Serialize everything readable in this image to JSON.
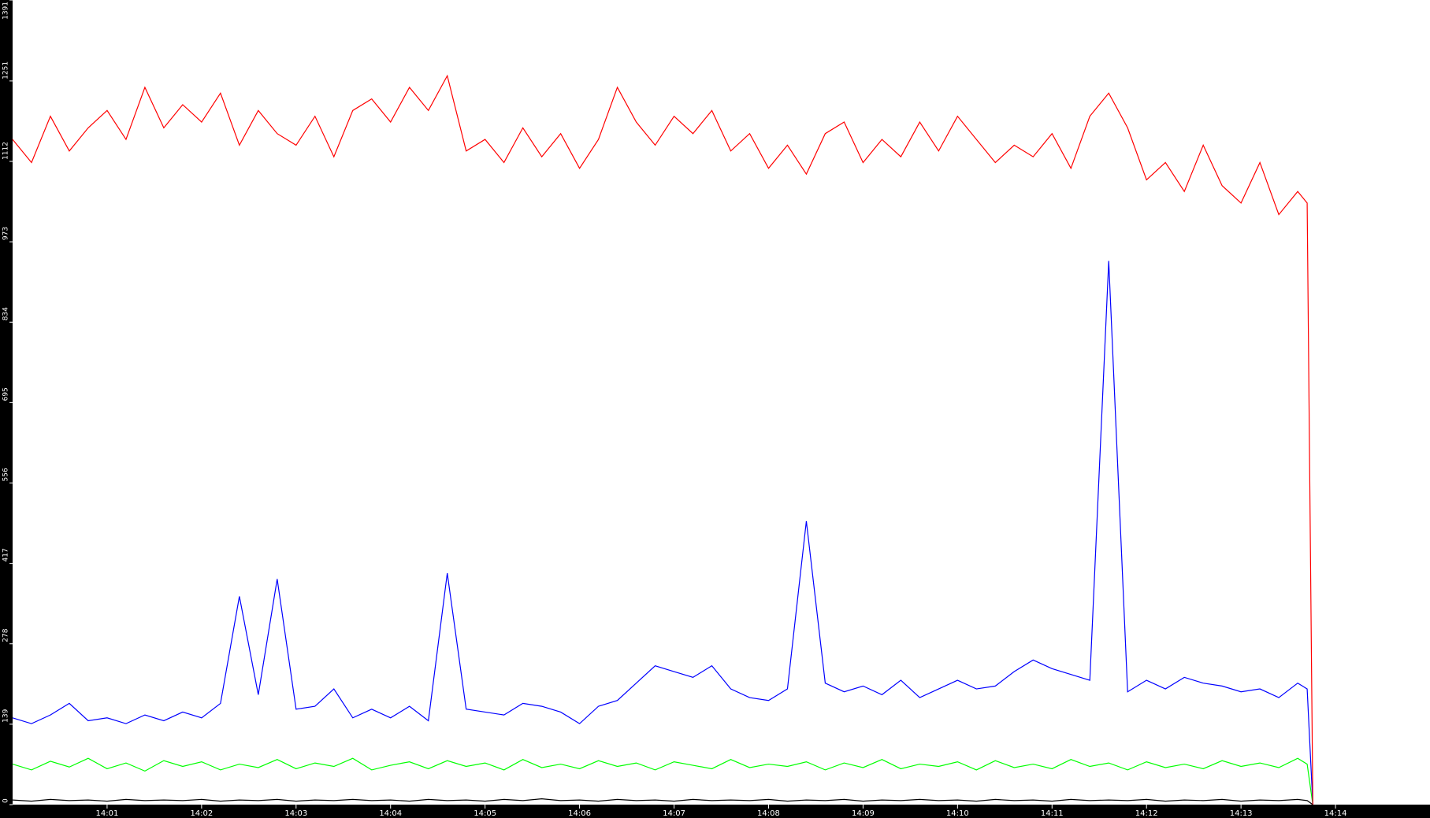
{
  "chart_data": {
    "type": "line",
    "x": [
      0,
      0.2,
      0.4,
      0.6,
      0.8,
      1,
      1.2,
      1.4,
      1.6,
      1.8,
      2,
      2.2,
      2.4,
      2.6,
      2.8,
      3,
      3.2,
      3.4,
      3.6,
      3.8,
      4,
      4.2,
      4.4,
      4.6,
      4.8,
      5,
      5.2,
      5.4,
      5.6,
      5.8,
      6,
      6.2,
      6.4,
      6.6,
      6.8,
      7,
      7.2,
      7.4,
      7.6,
      7.8,
      8,
      8.2,
      8.4,
      8.6,
      8.8,
      9,
      9.2,
      9.4,
      9.6,
      9.8,
      10,
      10.2,
      10.4,
      10.6,
      10.8,
      11,
      11.2,
      11.4,
      11.6,
      11.8,
      12,
      12.2,
      12.4,
      12.6,
      12.8,
      13,
      13.2,
      13.4,
      13.6,
      13.7,
      13.76
    ],
    "series": [
      {
        "color": "#ff0000",
        "values": [
          1150,
          1110,
          1190,
          1130,
          1170,
          1200,
          1150,
          1240,
          1170,
          1210,
          1180,
          1230,
          1140,
          1200,
          1160,
          1140,
          1190,
          1120,
          1200,
          1220,
          1180,
          1240,
          1200,
          1260,
          1130,
          1150,
          1110,
          1170,
          1120,
          1160,
          1100,
          1150,
          1240,
          1180,
          1140,
          1190,
          1160,
          1200,
          1130,
          1160,
          1100,
          1140,
          1090,
          1160,
          1180,
          1110,
          1150,
          1120,
          1180,
          1130,
          1190,
          1150,
          1110,
          1140,
          1120,
          1160,
          1100,
          1190,
          1230,
          1170,
          1080,
          1110,
          1060,
          1140,
          1070,
          1040,
          1110,
          1020,
          1060,
          1040,
          0
        ]
      },
      {
        "color": "#0000ff",
        "values": [
          150,
          140,
          155,
          175,
          145,
          150,
          140,
          155,
          145,
          160,
          150,
          175,
          360,
          190,
          390,
          165,
          170,
          200,
          150,
          165,
          150,
          170,
          145,
          400,
          165,
          160,
          155,
          175,
          170,
          160,
          140,
          170,
          180,
          210,
          240,
          230,
          220,
          240,
          200,
          185,
          180,
          200,
          490,
          210,
          195,
          205,
          190,
          215,
          185,
          200,
          215,
          200,
          205,
          230,
          250,
          235,
          225,
          215,
          940,
          195,
          215,
          200,
          220,
          210,
          205,
          195,
          200,
          185,
          210,
          200,
          0
        ]
      },
      {
        "color": "#00ff00",
        "values": [
          70,
          60,
          75,
          65,
          80,
          62,
          72,
          58,
          76,
          66,
          74,
          60,
          70,
          64,
          78,
          62,
          72,
          66,
          80,
          60,
          68,
          74,
          62,
          76,
          66,
          72,
          60,
          78,
          64,
          70,
          62,
          76,
          66,
          72,
          60,
          74,
          68,
          62,
          78,
          64,
          70,
          66,
          74,
          60,
          72,
          64,
          78,
          62,
          70,
          66,
          74,
          60,
          76,
          64,
          70,
          62,
          78,
          66,
          72,
          60,
          74,
          64,
          70,
          62,
          76,
          66,
          72,
          64,
          80,
          70,
          0
        ]
      },
      {
        "color": "#000000",
        "values": [
          8,
          6,
          9,
          7,
          8,
          6,
          9,
          7,
          8,
          7,
          9,
          6,
          8,
          7,
          9,
          6,
          8,
          7,
          9,
          7,
          8,
          6,
          9,
          7,
          8,
          6,
          9,
          7,
          10,
          7,
          8,
          6,
          9,
          7,
          8,
          6,
          9,
          7,
          8,
          7,
          9,
          6,
          8,
          7,
          9,
          6,
          8,
          7,
          9,
          7,
          8,
          6,
          9,
          7,
          8,
          6,
          9,
          7,
          8,
          7,
          9,
          6,
          8,
          7,
          9,
          6,
          8,
          7,
          9,
          7,
          0
        ]
      }
    ],
    "xlim": [
      0,
      15
    ],
    "xticks": [
      {
        "value": 1,
        "label": "14:01"
      },
      {
        "value": 2,
        "label": "14:02"
      },
      {
        "value": 3,
        "label": "14:03"
      },
      {
        "value": 4,
        "label": "14:04"
      },
      {
        "value": 5,
        "label": "14:05"
      },
      {
        "value": 6,
        "label": "14:06"
      },
      {
        "value": 7,
        "label": "14:07"
      },
      {
        "value": 8,
        "label": "14:08"
      },
      {
        "value": 9,
        "label": "14:09"
      },
      {
        "value": 10,
        "label": "14:10"
      },
      {
        "value": 11,
        "label": "14:11"
      },
      {
        "value": 12,
        "label": "14:12"
      },
      {
        "value": 13,
        "label": "14:13"
      },
      {
        "value": 14,
        "label": "14:14"
      }
    ],
    "ylim": [
      0,
      1391
    ],
    "yticks": [
      0,
      139,
      278,
      417,
      556,
      695,
      834,
      973,
      1112,
      1251,
      1391
    ]
  }
}
